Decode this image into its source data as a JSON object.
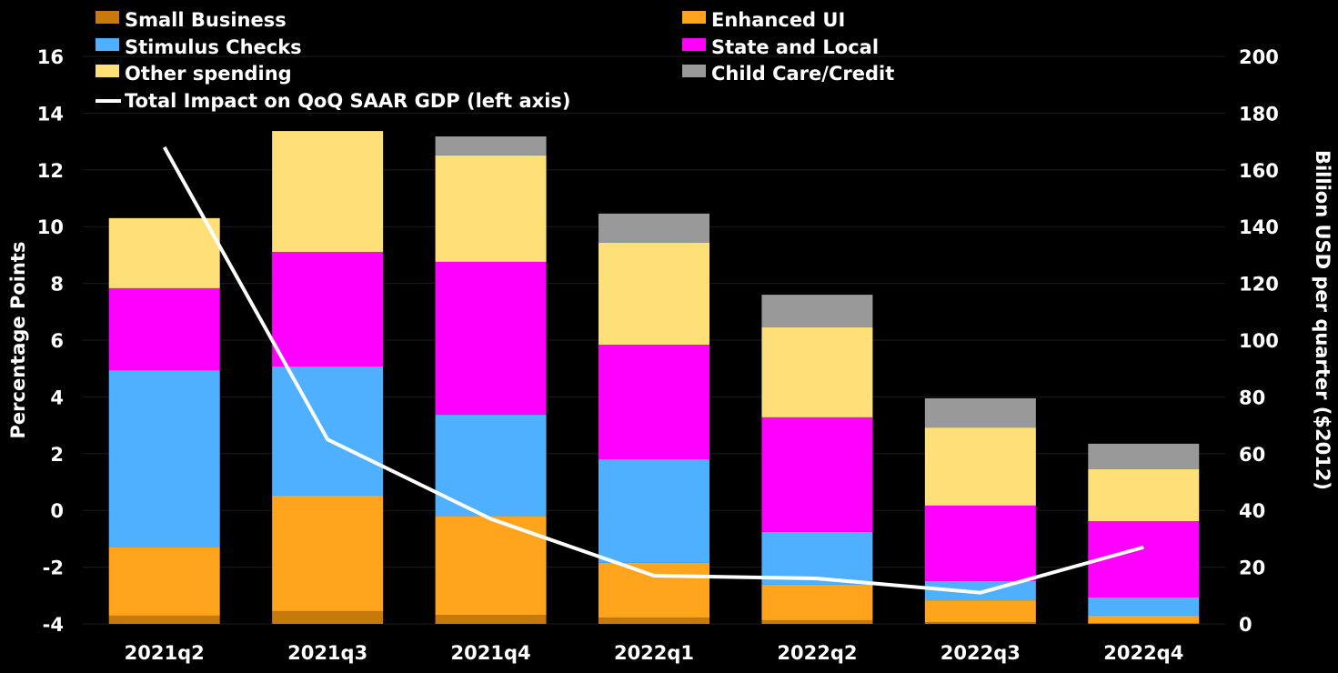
{
  "chart_data": {
    "type": "bar",
    "stacked": true,
    "categories": [
      "2021q2",
      "2021q3",
      "2021q4",
      "2022q1",
      "2022q2",
      "2022q3",
      "2022q4"
    ],
    "series": [
      {
        "name": "Small Business",
        "color": "#c8790c",
        "axis": "right",
        "values": [
          2.9,
          4.5,
          3.2,
          2.2,
          1.3,
          0.6,
          0.3
        ]
      },
      {
        "name": "Enhanced UI",
        "color": "#ffa41c",
        "axis": "right",
        "values": [
          24.3,
          40.7,
          34.9,
          19.3,
          12.5,
          7.7,
          2.6
        ]
      },
      {
        "name": "Stimulus Checks",
        "color": "#4eb0ff",
        "axis": "right",
        "values": [
          62.2,
          45.5,
          35.6,
          36.5,
          18.6,
          6.8,
          6.4
        ]
      },
      {
        "name": "State and Local",
        "color": "#ff00ff",
        "axis": "right",
        "values": [
          28.9,
          40.4,
          53.9,
          40.4,
          40.4,
          26.6,
          26.9
        ]
      },
      {
        "name": "Other spending",
        "color": "#ffdf78",
        "axis": "right",
        "values": [
          24.7,
          42.6,
          37.5,
          35.9,
          31.7,
          27.5,
          18.3
        ]
      },
      {
        "name": "Child Care/Credit",
        "color": "#999999",
        "axis": "right",
        "values": [
          0,
          0,
          6.7,
          10.3,
          11.5,
          10.3,
          9.0
        ]
      }
    ],
    "line": {
      "name": "Total Impact on QoQ SAAR GDP (left axis)",
      "color": "#ffffff",
      "axis": "left",
      "values": [
        12.8,
        2.5,
        -0.3,
        -2.3,
        -2.4,
        -2.9,
        -1.3
      ]
    },
    "ylabel": "Percentage Points",
    "y2label": "Billion USD per quarter ($2012)",
    "ylim": [
      -4,
      16
    ],
    "y2lim": [
      0,
      200
    ],
    "yticks": [
      "-4",
      "-2",
      "0",
      "2",
      "4",
      "6",
      "8",
      "10",
      "12",
      "14",
      "16"
    ],
    "y2ticks": [
      "0",
      "20",
      "40",
      "60",
      "80",
      "100",
      "120",
      "140",
      "160",
      "180",
      "200"
    ],
    "grid": true,
    "legend": "top"
  }
}
